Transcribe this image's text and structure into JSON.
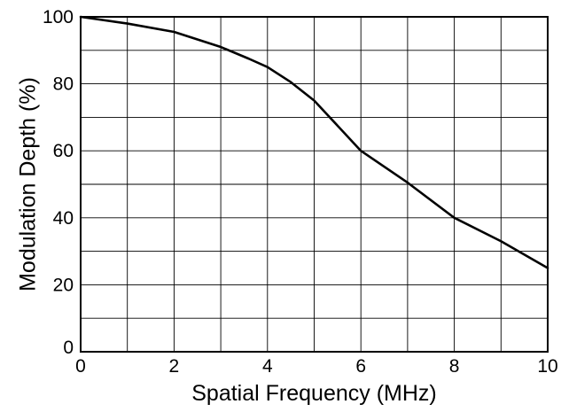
{
  "chart_data": {
    "type": "line",
    "title": "",
    "xlabel": "Spatial Frequency (MHz)",
    "ylabel": "Modulation Depth (%)",
    "xlim": [
      0,
      10
    ],
    "ylim": [
      0,
      100
    ],
    "x_ticks": [
      0,
      2,
      4,
      6,
      8,
      10
    ],
    "y_ticks": [
      0,
      20,
      40,
      60,
      80,
      100
    ],
    "x_grid_step": 1,
    "y_grid_step": 10,
    "grid": true,
    "legend": "none",
    "series": [
      {
        "color": "#000000",
        "x": [
          0,
          1,
          2,
          3,
          3.6,
          4,
          4.5,
          5,
          6,
          7,
          8,
          9,
          10
        ],
        "y": [
          100,
          98,
          95.5,
          91,
          87.5,
          85,
          80.5,
          75,
          60,
          50.5,
          40,
          33,
          25
        ]
      }
    ],
    "colors": {
      "line": "#000000",
      "grid": "#000000",
      "frame": "#000000",
      "background": "#ffffff"
    }
  }
}
